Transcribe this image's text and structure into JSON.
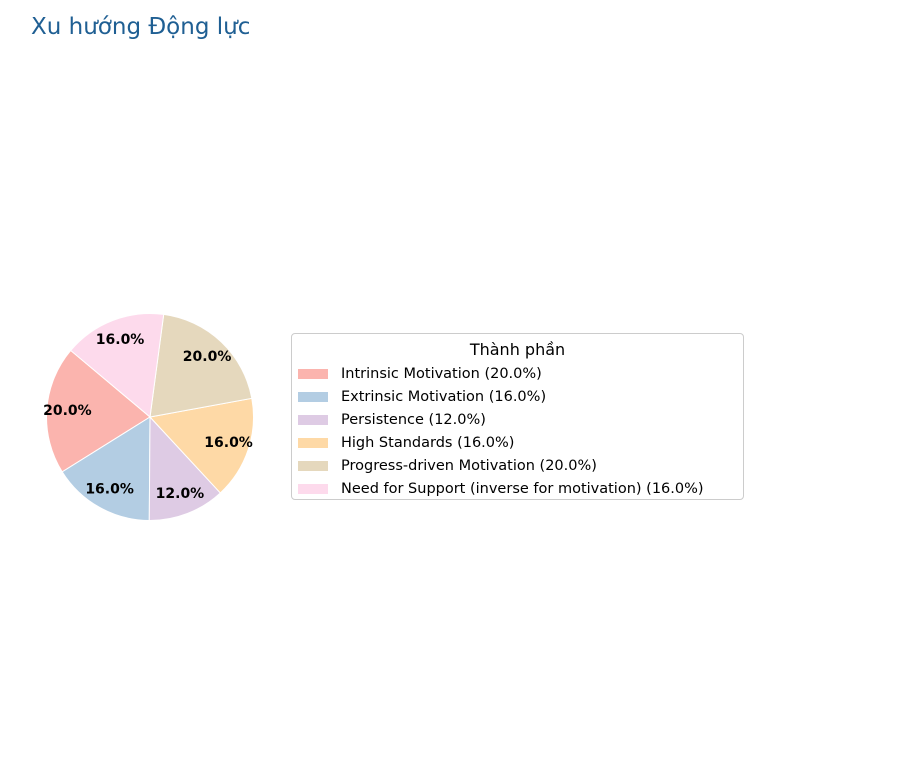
{
  "title": "Xu hướng Động lực",
  "chart_data": {
    "type": "pie",
    "title": "Xu hướng Động lực",
    "categories": [
      "Intrinsic Motivation",
      "Extrinsic Motivation",
      "Persistence",
      "High Standards",
      "Progress-driven Motivation",
      "Need for Support (inverse for motivation)"
    ],
    "values": [
      20.0,
      16.0,
      12.0,
      16.0,
      20.0,
      16.0
    ],
    "pct_labels": [
      "20.0%",
      "16.0%",
      "12.0%",
      "16.0%",
      "20.0%",
      "16.0%"
    ],
    "colors": [
      "#fbb4ae",
      "#b3cde3",
      "#decbe4",
      "#fed9a6",
      "#e5d8bd",
      "#fddaec"
    ],
    "legend": {
      "title": "Thành phần",
      "placement": "right",
      "entries": [
        "Intrinsic Motivation (20.0%)",
        "Extrinsic Motivation (16.0%)",
        "Persistence (12.0%)",
        "High Standards (16.0%)",
        "Progress-driven Motivation (20.0%)",
        "Need for Support (inverse for motivation) (16.0%)"
      ]
    }
  }
}
